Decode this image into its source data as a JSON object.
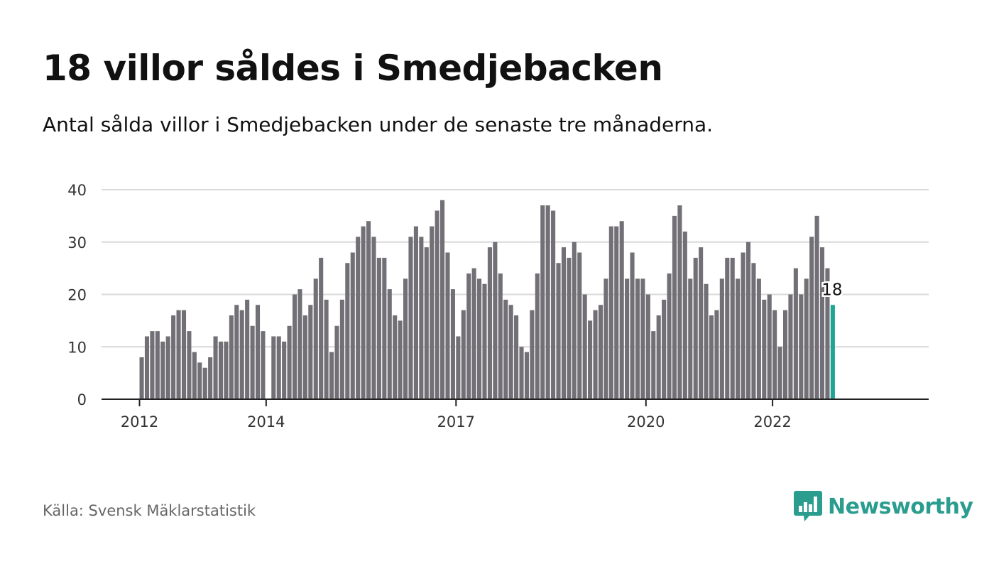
{
  "header": {
    "title": "18 villor såldes i Smedjebacken",
    "subtitle": "Antal sålda villor i Smedjebacken under de senaste tre månaderna."
  },
  "footer": {
    "source": "Källa: Svensk Mäklarstatistik",
    "brand": "Newsworthy",
    "brand_icon": "bar-chart-speech-bubble-icon"
  },
  "colors": {
    "bar": "#727076",
    "highlight": "#1fa594",
    "grid": "#d9d9d9",
    "axis": "#222222",
    "brand": "#2a9d8f"
  },
  "chart_data": {
    "type": "bar",
    "title": "18 villor såldes i Smedjebacken",
    "xlabel": "",
    "ylabel": "",
    "ylim": [
      0,
      40
    ],
    "yticks": [
      0,
      10,
      20,
      30,
      40
    ],
    "grid": true,
    "x_start": "2012-01",
    "xticks": [
      {
        "label": "2012",
        "index": 0
      },
      {
        "label": "2014",
        "index": 24
      },
      {
        "label": "2017",
        "index": 60
      },
      {
        "label": "2020",
        "index": 96
      },
      {
        "label": "2022",
        "index": 120
      }
    ],
    "values": [
      8,
      12,
      13,
      13,
      11,
      12,
      16,
      17,
      17,
      13,
      9,
      7,
      6,
      8,
      12,
      11,
      11,
      16,
      18,
      17,
      19,
      14,
      18,
      13,
      0,
      12,
      12,
      11,
      14,
      20,
      21,
      16,
      18,
      23,
      27,
      19,
      9,
      14,
      19,
      26,
      28,
      31,
      33,
      34,
      31,
      27,
      27,
      21,
      16,
      15,
      23,
      31,
      33,
      31,
      29,
      33,
      36,
      38,
      28,
      21,
      12,
      17,
      24,
      25,
      23,
      22,
      29,
      30,
      24,
      19,
      18,
      16,
      10,
      9,
      17,
      24,
      37,
      37,
      36,
      26,
      29,
      27,
      30,
      28,
      20,
      15,
      17,
      18,
      23,
      33,
      33,
      34,
      23,
      28,
      23,
      23,
      20,
      13,
      16,
      19,
      24,
      35,
      37,
      32,
      23,
      27,
      29,
      22,
      16,
      17,
      23,
      27,
      27,
      23,
      28,
      30,
      26,
      23,
      19,
      20,
      17,
      10,
      17,
      20,
      25,
      20,
      23,
      31,
      35,
      29,
      25,
      18
    ],
    "highlight_index": 131,
    "highlight_label": "18"
  }
}
